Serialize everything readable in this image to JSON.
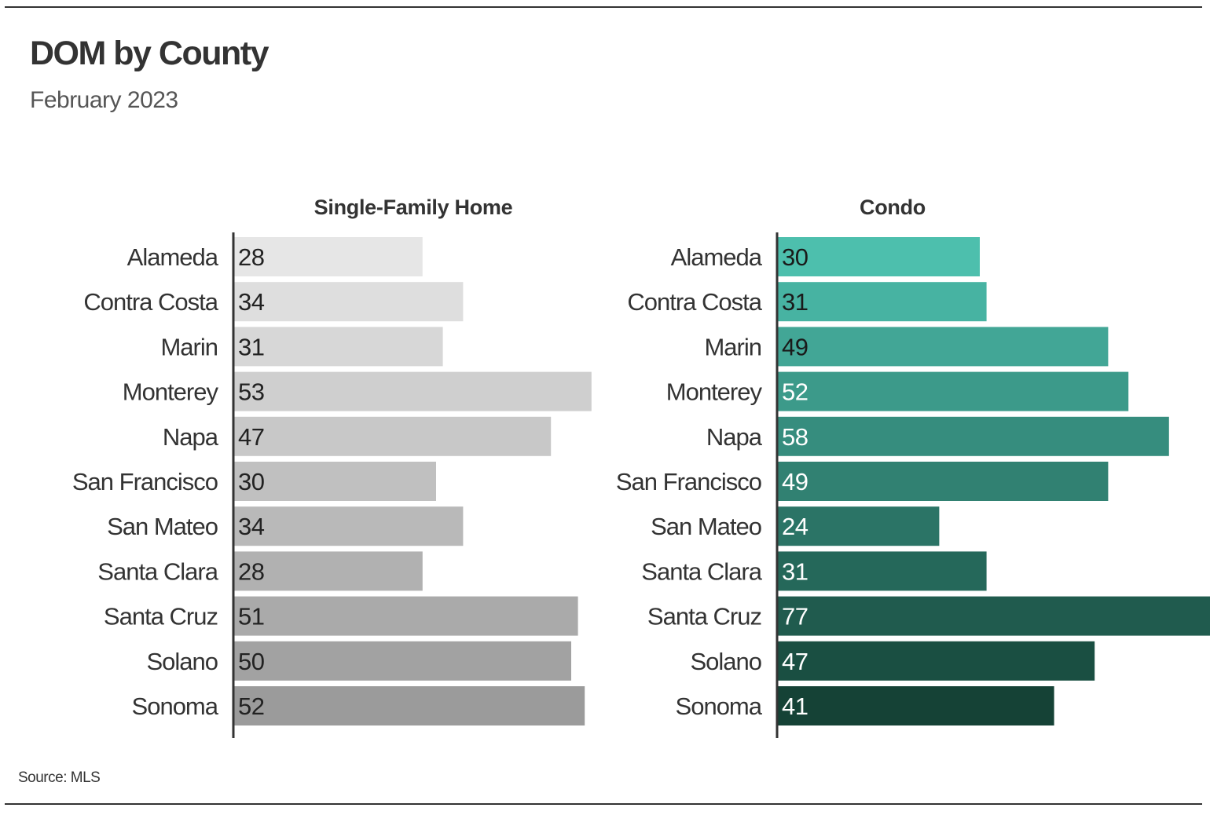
{
  "title": "DOM by County",
  "subtitle": "February 2023",
  "source": "Source: MLS",
  "chart_data": [
    {
      "type": "bar",
      "orientation": "horizontal",
      "title": "Single-Family Home",
      "categories": [
        "Alameda",
        "Contra Costa",
        "Marin",
        "Monterey",
        "Napa",
        "San Francisco",
        "San Mateo",
        "Santa Clara",
        "Santa Cruz",
        "Solano",
        "Sonoma"
      ],
      "values": [
        28,
        34,
        31,
        53,
        47,
        30,
        34,
        28,
        51,
        50,
        52
      ],
      "colors": [
        "#e6e6e6",
        "#dedede",
        "#d7d7d7",
        "#cfcfcf",
        "#c8c8c8",
        "#c0c0c0",
        "#b9b9b9",
        "#b1b1b1",
        "#aaaaaa",
        "#a2a2a2",
        "#9b9b9b"
      ],
      "label_color": "#222222",
      "xlabel": "",
      "ylabel": "",
      "xlim": [
        0,
        80
      ]
    },
    {
      "type": "bar",
      "orientation": "horizontal",
      "title": "Condo",
      "categories": [
        "Alameda",
        "Contra Costa",
        "Marin",
        "Monterey",
        "Napa",
        "San Francisco",
        "San Mateo",
        "Santa Clara",
        "Santa Cruz",
        "Solano",
        "Sonoma"
      ],
      "values": [
        30,
        31,
        49,
        52,
        58,
        49,
        24,
        31,
        77,
        47,
        41
      ],
      "colors": [
        "#4dbfad",
        "#47b3a2",
        "#42a696",
        "#3c9a8a",
        "#368d7e",
        "#318172",
        "#2b7466",
        "#25685a",
        "#205b4e",
        "#1a4f42",
        "#154236"
      ],
      "label_colors": [
        "#1a1a1a",
        "#1a1a1a",
        "#1a1a1a",
        "#ffffff",
        "#ffffff",
        "#ffffff",
        "#ffffff",
        "#ffffff",
        "#ffffff",
        "#ffffff",
        "#ffffff"
      ],
      "xlabel": "",
      "ylabel": "",
      "xlim": [
        0,
        80
      ]
    }
  ]
}
